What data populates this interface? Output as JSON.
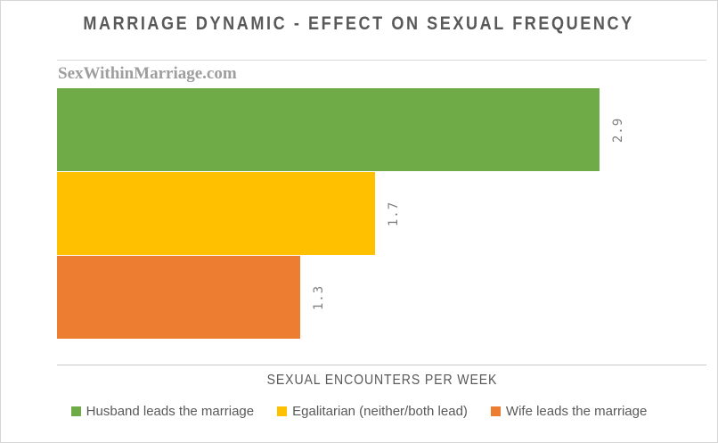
{
  "title": "MARRIAGE DYNAMIC - EFFECT ON SEXUAL FREQUENCY",
  "watermark": "SexWithinMarriage.com",
  "chart_data": {
    "type": "bar",
    "orientation": "horizontal",
    "title": "MARRIAGE DYNAMIC - EFFECT ON SEXUAL FREQUENCY",
    "xlabel": "SEXUAL ENCOUNTERS PER WEEK",
    "categories": [
      "Husband leads the marriage",
      "Egalitarian (neither/both lead)",
      "Wife leads the marriage"
    ],
    "values": [
      2.9,
      1.7,
      1.3
    ],
    "data_labels": [
      "2.9",
      "1.7",
      "1.3"
    ],
    "colors": [
      "#6FAC47",
      "#FFC000",
      "#ED7D31"
    ],
    "xlim": [
      0,
      3.47
    ],
    "grid": false,
    "legend_position": "bottom",
    "data_label_rotation_deg": -90
  },
  "axis": {
    "x_title": "SEXUAL ENCOUNTERS PER WEEK"
  },
  "legend": {
    "items": [
      {
        "label": "Husband leads the marriage",
        "color": "#6FAC47"
      },
      {
        "label": "Egalitarian (neither/both lead)",
        "color": "#FFC000"
      },
      {
        "label": "Wife leads the marriage",
        "color": "#ED7D31"
      }
    ]
  },
  "colors": {
    "title_text": "#595959",
    "axis_title_text": "#595959",
    "legend_text": "#595959",
    "value_label_text": "#808080",
    "watermark_text": "#9E9E9E",
    "frame_border": "#D6D6D6",
    "plot_border_line": "#D9D9D9"
  }
}
